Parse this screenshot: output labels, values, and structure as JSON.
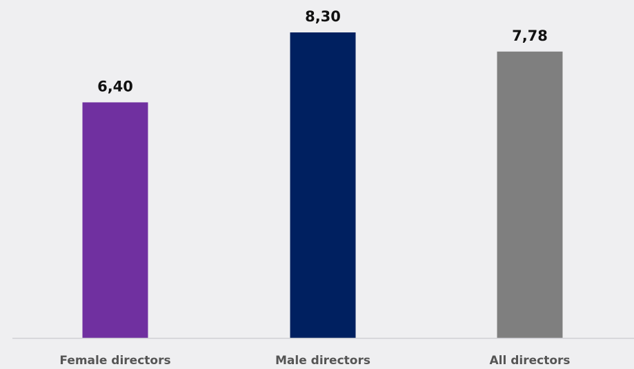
{
  "chart_data": {
    "type": "bar",
    "categories": [
      "Female directors",
      "Male directors",
      "All directors"
    ],
    "values": [
      6.4,
      8.3,
      7.78
    ],
    "value_labels": [
      "6,40",
      "8,30",
      "7,78"
    ],
    "colors": [
      "#7030a0",
      "#002060",
      "#7f7f7f"
    ],
    "ylim": [
      0,
      8.3
    ],
    "grid": false,
    "title": "",
    "xlabel": "",
    "ylabel": ""
  }
}
